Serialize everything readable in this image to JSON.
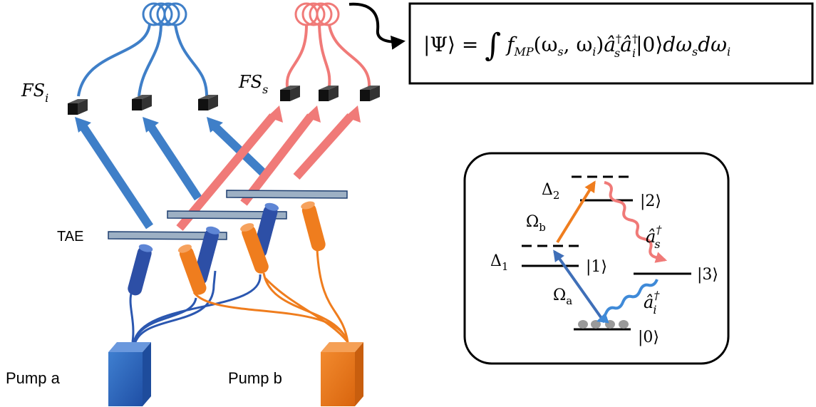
{
  "pump_labels": {
    "a": "Pump a",
    "b": "Pump b"
  },
  "tae_label": "TAE",
  "fiber_labels": {
    "idler": {
      "base": "FS",
      "sub": "i"
    },
    "signal": {
      "base": "FS",
      "sub": "s"
    }
  },
  "state_equation": {
    "lhs": "|Ψ⟩ = ",
    "integral": "∫",
    "f": "f",
    "f_sub": "MP",
    "args": "(ω",
    "args_s": "s",
    "args_comma": ", ω",
    "args_i": "i",
    "args_close": ")",
    "op": "â",
    "op_s_sub": "s",
    "op_i_sub": "i",
    "dagger": "†",
    "vac": "|0⟩",
    "d1": "dω",
    "d1_sub": "s",
    "d2": "dω",
    "d2_sub": "i"
  },
  "level_diagram": {
    "detuning_2": {
      "base": "Δ",
      "sub": "2"
    },
    "detuning_1": {
      "base": "Δ",
      "sub": "1"
    },
    "omega_b": {
      "base": "Ω",
      "sub": "b"
    },
    "omega_a": {
      "base": "Ω",
      "sub": "a"
    },
    "level_2": "|2⟩",
    "level_1": "|1⟩",
    "level_3": "|3⟩",
    "level_0": "|0⟩",
    "signal_op": {
      "base": "â",
      "sup": "†",
      "sub": "s"
    },
    "idler_op": {
      "base": "â",
      "sup": "†",
      "sub": "i"
    }
  },
  "colors": {
    "blue": "#3f7fc8",
    "blue_dark": "#2b4fa8",
    "salmon": "#f07a78",
    "orange": "#ef7d1e",
    "slab": "#9db0c4",
    "black": "#000000"
  }
}
